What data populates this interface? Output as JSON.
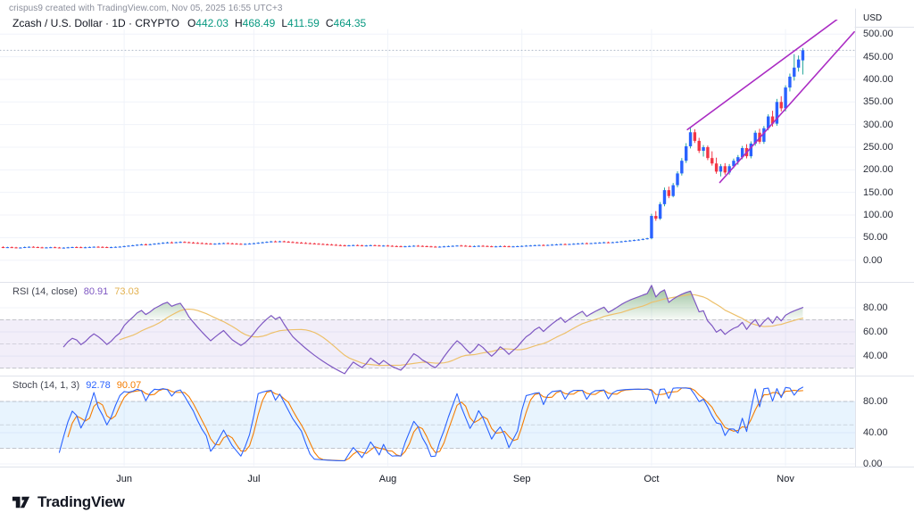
{
  "header": {
    "attribution": "crispus9 created with TradingView.com, Nov 05, 2025 16:55 UTC+3",
    "symbol_line": "Zcash / U.S. Dollar · 1D · CRYPTO",
    "ohlc": [
      {
        "k": "O",
        "v": "442.03"
      },
      {
        "k": "H",
        "v": "468.49"
      },
      {
        "k": "L",
        "v": "411.59"
      },
      {
        "k": "C",
        "v": "464.35"
      }
    ]
  },
  "axis": {
    "unit": "USD"
  },
  "panes": {
    "rsi": {
      "label": "RSI (14, close)",
      "v1": "80.91",
      "v2": "73.03"
    },
    "stoch": {
      "label": "Stoch (14, 1, 3)",
      "v1": "92.78",
      "v2": "90.07"
    }
  },
  "footer": {
    "logo_text": "TradingView"
  },
  "colors": {
    "up_body": "#2962ff",
    "up_wick": "#26a69a",
    "down_body": "#f23645",
    "down_wick": "#f23645",
    "trendline": "#aa2bc3",
    "rsi_line": "#7e57c2",
    "rsi_ma": "#edc06b",
    "rsi_band": "rgba(126,87,194,0.10)",
    "rsi_overbought_fill": "76,145,80",
    "stoch_k": "#2962ff",
    "stoch_d": "#f57c00",
    "stoch_band": "rgba(33,150,243,0.10)",
    "grid": "#f0f3fa",
    "separator": "#e0e3eb",
    "band_dash": "rgba(150,153,163,0.55)",
    "close_dotted": "rgba(110,130,155,0.55)",
    "accent_text": "#089981"
  },
  "chart_data": {
    "type": "candlestick",
    "title": "Zcash / U.S. Dollar",
    "interval": "1D",
    "exchange": "CRYPTO",
    "last_ohlc": {
      "o": 442.03,
      "h": 468.49,
      "l": 411.59,
      "c": 464.35
    },
    "price_axis": {
      "min": 0,
      "max": 500,
      "tick": 50,
      "unit": "USD"
    },
    "months": [
      {
        "label": "Jun",
        "index": 28
      },
      {
        "label": "Jul",
        "index": 58
      },
      {
        "label": "Aug",
        "index": 89
      },
      {
        "label": "Sep",
        "index": 120
      },
      {
        "label": "Oct",
        "index": 150
      },
      {
        "label": "Nov",
        "index": 181
      }
    ],
    "close_line": 464.35,
    "trendlines": [
      {
        "i1": 158.3,
        "p1": 289,
        "i2": 193.4,
        "p2": 536
      },
      {
        "i1": 165.8,
        "p1": 172,
        "i2": 196.9,
        "p2": 505
      }
    ],
    "rsi": {
      "length": 14,
      "ma_length": 14,
      "bands": [
        70,
        50,
        30
      ],
      "axis_ticks": [
        80,
        60,
        40
      ],
      "last": 80.91,
      "ma_last": 73.03
    },
    "stoch": {
      "k": 14,
      "smooth": 1,
      "d": 3,
      "bands": [
        80,
        50,
        20
      ],
      "axis_ticks": [
        80,
        40,
        0
      ],
      "k_last": 92.78,
      "d_last": 90.07
    },
    "candles": [
      [
        29,
        30,
        27.5,
        28.2
      ],
      [
        28.2,
        29,
        27.8,
        28.8
      ],
      [
        28.8,
        29.5,
        28,
        28.3
      ],
      [
        28.3,
        28.8,
        27,
        27.4
      ],
      [
        27.4,
        28.2,
        26.8,
        28
      ],
      [
        28,
        29.4,
        27.8,
        29.1
      ],
      [
        29.1,
        30,
        28.6,
        29.6
      ],
      [
        29.6,
        30.2,
        28.8,
        29
      ],
      [
        29,
        29.6,
        28,
        28.4
      ],
      [
        28.4,
        29,
        27.5,
        27.9
      ],
      [
        27.9,
        28.6,
        27.2,
        28.2
      ],
      [
        28.2,
        29,
        27.8,
        28.7
      ],
      [
        28.7,
        29.2,
        27.9,
        28.1
      ],
      [
        28.1,
        28.6,
        27,
        27.3
      ],
      [
        27.3,
        28,
        26.5,
        27.8
      ],
      [
        27.8,
        28.8,
        27.4,
        28.5
      ],
      [
        28.5,
        29.3,
        28,
        29
      ],
      [
        29,
        29.8,
        28.4,
        28.8
      ],
      [
        28.8,
        29.4,
        27.9,
        28.2
      ],
      [
        28.2,
        28.9,
        27.6,
        28.6
      ],
      [
        28.6,
        29.5,
        28.2,
        29.2
      ],
      [
        29.2,
        30,
        28.7,
        29.7
      ],
      [
        29.7,
        30.5,
        29,
        29.4
      ],
      [
        29.4,
        30,
        28.6,
        29
      ],
      [
        29,
        29.6,
        28.2,
        28.5
      ],
      [
        28.5,
        29.2,
        27.8,
        28.9
      ],
      [
        28.9,
        29.8,
        28.4,
        29.5
      ],
      [
        29.5,
        30.4,
        29,
        30
      ],
      [
        30,
        31.5,
        29.6,
        31.2
      ],
      [
        31.2,
        32.5,
        30.8,
        32.1
      ],
      [
        32.1,
        33.4,
        31.6,
        33
      ],
      [
        33,
        34.5,
        32.5,
        34.2
      ],
      [
        34.2,
        35.5,
        33.6,
        35
      ],
      [
        35,
        36.2,
        34.2,
        34.6
      ],
      [
        34.6,
        35.8,
        34,
        35.4
      ],
      [
        35.4,
        37,
        35,
        36.6
      ],
      [
        36.6,
        38,
        36,
        37.5
      ],
      [
        37.5,
        39,
        37,
        38.6
      ],
      [
        38.6,
        40,
        38,
        39.4
      ],
      [
        39.4,
        40.6,
        38.6,
        39
      ],
      [
        39,
        40.2,
        38.4,
        39.8
      ],
      [
        39.8,
        41,
        39.2,
        40.4
      ],
      [
        40.4,
        41.2,
        39.4,
        39.8
      ],
      [
        39.8,
        40.4,
        38.6,
        39
      ],
      [
        39,
        39.8,
        38,
        38.4
      ],
      [
        38.4,
        39.2,
        37.4,
        37.8
      ],
      [
        37.8,
        38.6,
        36.8,
        37.2
      ],
      [
        37.2,
        38,
        36.2,
        36.6
      ],
      [
        36.6,
        37.4,
        35.6,
        36
      ],
      [
        36,
        37,
        35.2,
        36.6
      ],
      [
        36.6,
        37.6,
        36,
        37.2
      ],
      [
        37.2,
        38.2,
        36.6,
        37.8
      ],
      [
        37.8,
        38.4,
        36.8,
        37.2
      ],
      [
        37.2,
        37.8,
        36.2,
        36.6
      ],
      [
        36.6,
        37.4,
        35.8,
        36.2
      ],
      [
        36.2,
        37,
        35.4,
        35.8
      ],
      [
        35.8,
        36.6,
        35,
        36.2
      ],
      [
        36.2,
        37.2,
        35.8,
        36.8
      ],
      [
        36.8,
        38,
        36.2,
        37.6
      ],
      [
        37.6,
        39,
        37.2,
        38.6
      ],
      [
        38.6,
        40,
        38.2,
        39.6
      ],
      [
        39.6,
        41,
        39,
        40.6
      ],
      [
        40.6,
        42,
        40.2,
        41.6
      ],
      [
        41.6,
        42.6,
        40.8,
        41.2
      ],
      [
        41.2,
        42.2,
        40.4,
        41.8
      ],
      [
        41.8,
        42.4,
        40.6,
        41
      ],
      [
        41,
        41.8,
        39.8,
        40.2
      ],
      [
        40.2,
        41,
        39,
        39.4
      ],
      [
        39.4,
        40.2,
        38.4,
        38.8
      ],
      [
        38.8,
        39.6,
        37.8,
        38.2
      ],
      [
        38.2,
        39,
        37.2,
        37.6
      ],
      [
        37.6,
        38.4,
        36.6,
        37
      ],
      [
        37,
        37.8,
        36,
        36.4
      ],
      [
        36.4,
        37.2,
        35.4,
        35.8
      ],
      [
        35.8,
        36.6,
        34.8,
        35.2
      ],
      [
        35.2,
        36,
        34.2,
        34.6
      ],
      [
        34.6,
        35.4,
        33.6,
        34
      ],
      [
        34,
        34.8,
        33,
        33.4
      ],
      [
        33.4,
        34.2,
        32.4,
        32.8
      ],
      [
        32.8,
        33.6,
        31.8,
        32.2
      ],
      [
        32.2,
        33.2,
        31.6,
        32.8
      ],
      [
        32.8,
        33.8,
        32.2,
        33.4
      ],
      [
        33.4,
        34,
        32.4,
        32.8
      ],
      [
        32.8,
        33.4,
        31.8,
        32.2
      ],
      [
        32.2,
        33,
        31.4,
        32.6
      ],
      [
        32.6,
        33.6,
        32,
        33.2
      ],
      [
        33.2,
        33.8,
        32.2,
        32.6
      ],
      [
        32.6,
        33.2,
        31.6,
        32
      ],
      [
        32,
        32.8,
        31.2,
        32.4
      ],
      [
        32.4,
        33,
        31.4,
        31.8
      ],
      [
        31.8,
        32.4,
        30.8,
        31.2
      ],
      [
        31.2,
        32,
        30.4,
        30.8
      ],
      [
        30.8,
        31.6,
        30,
        30.4
      ],
      [
        30.4,
        31.2,
        29.6,
        30.8
      ],
      [
        30.8,
        31.8,
        30.2,
        31.4
      ],
      [
        31.4,
        32.4,
        30.8,
        32
      ],
      [
        32,
        32.8,
        31.2,
        31.6
      ],
      [
        31.6,
        32.2,
        30.6,
        31
      ],
      [
        31,
        31.8,
        30.2,
        30.6
      ],
      [
        30.6,
        31.2,
        29.6,
        30
      ],
      [
        30,
        30.8,
        29.2,
        29.6
      ],
      [
        29.6,
        30.4,
        28.8,
        30
      ],
      [
        30,
        31,
        29.4,
        30.6
      ],
      [
        30.6,
        31.6,
        30,
        31.2
      ],
      [
        31.2,
        32.2,
        30.6,
        31.8
      ],
      [
        31.8,
        32.8,
        31.2,
        32.4
      ],
      [
        32.4,
        33.2,
        31.6,
        32
      ],
      [
        32,
        32.6,
        31,
        31.4
      ],
      [
        31.4,
        32,
        30.4,
        30.8
      ],
      [
        30.8,
        31.6,
        30,
        31.2
      ],
      [
        31.2,
        32.2,
        30.6,
        31.8
      ],
      [
        31.8,
        32.6,
        31,
        31.4
      ],
      [
        31.4,
        32,
        30.4,
        30.8
      ],
      [
        30.8,
        31.4,
        29.8,
        30.2
      ],
      [
        30.2,
        31,
        29.4,
        30.6
      ],
      [
        30.6,
        31.6,
        30,
        31.2
      ],
      [
        31.2,
        32,
        30.4,
        30.8
      ],
      [
        30.8,
        31.4,
        29.8,
        30.2
      ],
      [
        30.2,
        31,
        29.4,
        30.6
      ],
      [
        30.6,
        31.4,
        30,
        31
      ],
      [
        31,
        32,
        30.4,
        31.6
      ],
      [
        31.6,
        32.6,
        31,
        32.2
      ],
      [
        32.2,
        33,
        31.4,
        32.6
      ],
      [
        32.6,
        33.6,
        32,
        33.2
      ],
      [
        33.2,
        34,
        32.4,
        33.6
      ],
      [
        33.6,
        34.4,
        32.8,
        33.2
      ],
      [
        33.2,
        34,
        32.6,
        33.8
      ],
      [
        33.8,
        34.8,
        33.2,
        34.4
      ],
      [
        34.4,
        35.4,
        33.8,
        35
      ],
      [
        35,
        36,
        34.4,
        35.6
      ],
      [
        35.6,
        36.4,
        34.8,
        35.2
      ],
      [
        35.2,
        36,
        34.6,
        35.8
      ],
      [
        35.8,
        36.8,
        35.2,
        36.4
      ],
      [
        36.4,
        37.4,
        35.8,
        37
      ],
      [
        37,
        38,
        36.4,
        37.6
      ],
      [
        37.6,
        38.4,
        36.8,
        37.2
      ],
      [
        37.2,
        38,
        36.6,
        37.8
      ],
      [
        37.8,
        38.8,
        37.2,
        38.4
      ],
      [
        38.4,
        39.4,
        37.8,
        39
      ],
      [
        39,
        40,
        38.4,
        39.6
      ],
      [
        39.6,
        40.4,
        38.8,
        39.2
      ],
      [
        39.2,
        40.2,
        38.6,
        39.8
      ],
      [
        39.8,
        41,
        39.2,
        40.6
      ],
      [
        40.6,
        42,
        40.2,
        41.6
      ],
      [
        41.6,
        43,
        41,
        42.6
      ],
      [
        42.6,
        44,
        42,
        43.6
      ],
      [
        43.6,
        45,
        43,
        44.6
      ],
      [
        44.6,
        46,
        44,
        45.6
      ],
      [
        45.6,
        47.5,
        45,
        47
      ],
      [
        47,
        49,
        46.4,
        48.5
      ],
      [
        48.5,
        102,
        47,
        98
      ],
      [
        98,
        108,
        88,
        92
      ],
      [
        92,
        128,
        90,
        124
      ],
      [
        124,
        160,
        120,
        155
      ],
      [
        155,
        162,
        138,
        142
      ],
      [
        142,
        170,
        140,
        166
      ],
      [
        166,
        196,
        162,
        192
      ],
      [
        192,
        225,
        188,
        220
      ],
      [
        220,
        258,
        216,
        252
      ],
      [
        252,
        292,
        248,
        283
      ],
      [
        283,
        289,
        260,
        264
      ],
      [
        264,
        270,
        238,
        242
      ],
      [
        242,
        254,
        230,
        250
      ],
      [
        250,
        253,
        222,
        226
      ],
      [
        226,
        240,
        210,
        214
      ],
      [
        214,
        226,
        192,
        196
      ],
      [
        196,
        212,
        186,
        208
      ],
      [
        208,
        214,
        190,
        194
      ],
      [
        194,
        212,
        190,
        208
      ],
      [
        208,
        224,
        204,
        220
      ],
      [
        218,
        232,
        212,
        228
      ],
      [
        228,
        252,
        224,
        248
      ],
      [
        248,
        256,
        226,
        230
      ],
      [
        230,
        262,
        226,
        258
      ],
      [
        258,
        286,
        254,
        282
      ],
      [
        282,
        290,
        258,
        262
      ],
      [
        262,
        296,
        258,
        292
      ],
      [
        292,
        322,
        288,
        318
      ],
      [
        318,
        330,
        296,
        302
      ],
      [
        302,
        356,
        298,
        350
      ],
      [
        350,
        362,
        330,
        336
      ],
      [
        336,
        386,
        330,
        382
      ],
      [
        382,
        412,
        374,
        406
      ],
      [
        406,
        455,
        398,
        426
      ],
      [
        426,
        452,
        418,
        444
      ],
      [
        442.03,
        468.49,
        411.59,
        464.35
      ]
    ]
  }
}
